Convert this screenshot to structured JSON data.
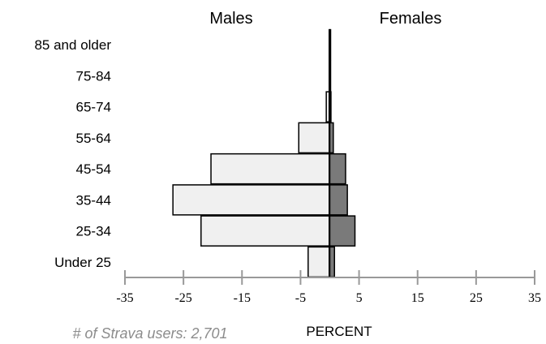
{
  "chart_data": {
    "type": "bar",
    "orientation": "horizontal",
    "subtype": "population-pyramid",
    "categories": [
      "85 and older",
      "75-84",
      "65-74",
      "55-64",
      "45-54",
      "35-44",
      "25-34",
      "Under 25"
    ],
    "series": [
      {
        "name": "Males",
        "values": [
          -0.1,
          -0.1,
          -0.6,
          -5.3,
          -20.3,
          -26.8,
          -22.0,
          -3.7
        ],
        "color": "#f0f0f0"
      },
      {
        "name": "Females",
        "values": [
          0.1,
          0.1,
          0.2,
          0.6,
          2.7,
          3.0,
          4.3,
          0.8
        ],
        "color": "#7a7a7a"
      }
    ],
    "xlabel": "PERCENT",
    "xlim": [
      -35,
      35
    ],
    "xticks": [
      "-35",
      "-25",
      "-15",
      "-5",
      "5",
      "15",
      "25",
      "35"
    ],
    "grid": false,
    "note": "# of Strava users: 2,701"
  }
}
